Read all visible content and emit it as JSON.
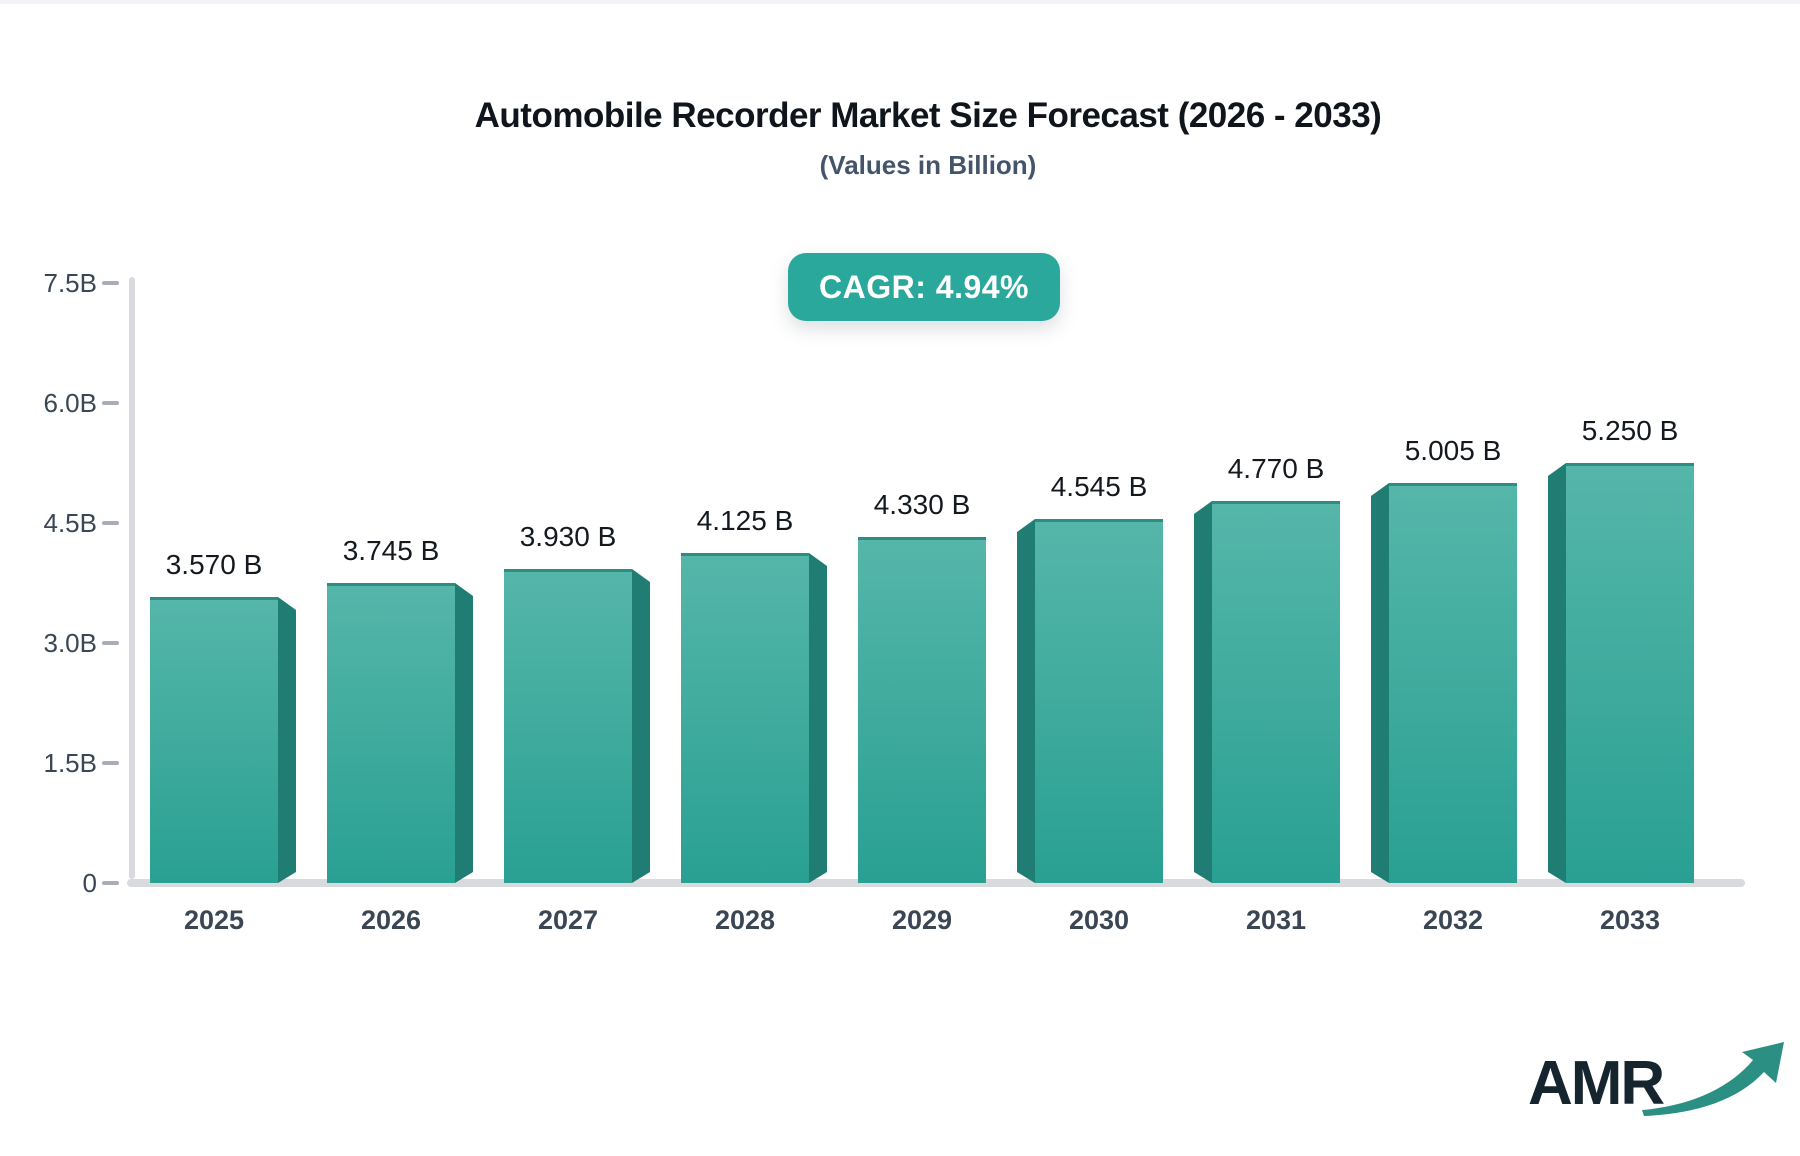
{
  "title": "Automobile Recorder Market Size Forecast (2026 - 2033)",
  "subtitle": "(Values in Billion)",
  "badge": {
    "label": "CAGR: 4.94%"
  },
  "logo": {
    "text": "AMR"
  },
  "chart_data": {
    "type": "bar",
    "title": "Automobile Recorder Market Size Forecast (2026 - 2033)",
    "subtitle": "(Values in Billion)",
    "cagr_label": "CAGR: 4.94%",
    "categories": [
      "2025",
      "2026",
      "2027",
      "2028",
      "2029",
      "2030",
      "2031",
      "2032",
      "2033"
    ],
    "values": [
      3.57,
      3.745,
      3.93,
      4.125,
      4.33,
      4.545,
      4.77,
      5.005,
      5.25
    ],
    "bar_labels": [
      "3.570 B",
      "3.745 B",
      "3.930 B",
      "4.125 B",
      "4.330 B",
      "4.545 B",
      "4.770 B",
      "5.005 B",
      "5.250 B"
    ],
    "xlabel": "",
    "ylabel": "",
    "ylim": [
      0,
      7.5
    ],
    "yticks": {
      "labels": [
        "0",
        "1.5B",
        "3.0B",
        "4.5B",
        "6.0B",
        "7.5B"
      ],
      "values": [
        0,
        1.5,
        3.0,
        4.5,
        6.0,
        7.5
      ]
    },
    "grid": false,
    "legend": false
  },
  "colors": {
    "bar_top": "#55b6a9",
    "bar_bottom": "#29a093",
    "bar_side": "#1f7d73",
    "bar_edge": "#2e8d82",
    "badge_bg": "#2aa89b",
    "axis": "#d8dade",
    "tick": "#a9aeb6",
    "title_text": "#10151c",
    "subtitle_text": "#44546a",
    "axis_text": "#3a4654",
    "value_text": "#14191f",
    "logo_text": "#16242e",
    "logo_arrow": "#2c8f84"
  }
}
